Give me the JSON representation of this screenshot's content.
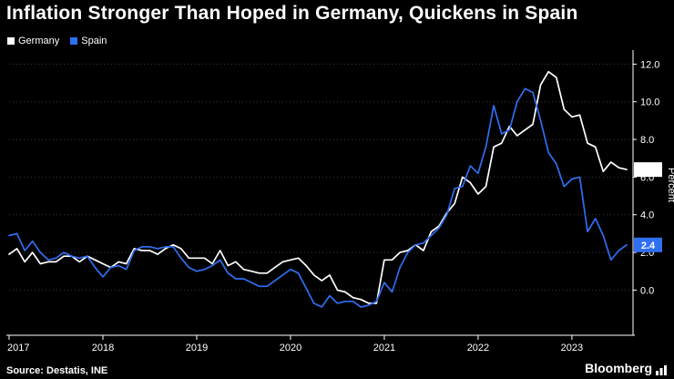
{
  "title": "Inflation Stronger Than Hoped in Germany, Quickens in Spain",
  "source": "Source: Destatis, INE",
  "brand": "Bloomberg",
  "colors": {
    "background": "#000000",
    "foreground": "#ffffff",
    "grid": "#3d3d3d",
    "germany": "#ffffff",
    "spain": "#2f6ff2"
  },
  "legend": [
    {
      "label": "Germany",
      "color": "#ffffff"
    },
    {
      "label": "Spain",
      "color": "#2f6ff2"
    }
  ],
  "chart_data": {
    "type": "line",
    "title": "Inflation Stronger Than Hoped in Germany, Quickens in Spain",
    "x_unit": "month",
    "x_start": "2017-01",
    "x_end": "2023-08",
    "frequency": "monthly",
    "ylabel": "Percent",
    "ylim": [
      -2.4,
      12.6
    ],
    "yticks": [
      0,
      2,
      4,
      6,
      8,
      10,
      12
    ],
    "grid": true,
    "legend_position": "top-left",
    "year_ticks": [
      {
        "label": "2017",
        "index": 0
      },
      {
        "label": "2018",
        "index": 12
      },
      {
        "label": "2019",
        "index": 24
      },
      {
        "label": "2020",
        "index": 36
      },
      {
        "label": "2021",
        "index": 48
      },
      {
        "label": "2022",
        "index": 60
      },
      {
        "label": "2023",
        "index": 72
      }
    ],
    "series": [
      {
        "name": "Germany",
        "color": "#ffffff",
        "values": [
          1.9,
          2.2,
          1.5,
          2.0,
          1.4,
          1.5,
          1.5,
          1.8,
          1.8,
          1.5,
          1.8,
          1.6,
          1.4,
          1.2,
          1.5,
          1.4,
          2.2,
          2.1,
          2.1,
          1.9,
          2.2,
          2.4,
          2.2,
          1.7,
          1.7,
          1.7,
          1.4,
          2.1,
          1.3,
          1.5,
          1.1,
          1.0,
          0.9,
          0.9,
          1.2,
          1.5,
          1.6,
          1.7,
          1.3,
          0.8,
          0.5,
          0.8,
          0.0,
          -0.1,
          -0.4,
          -0.5,
          -0.7,
          -0.7,
          1.6,
          1.6,
          2.0,
          2.1,
          2.4,
          2.1,
          3.1,
          3.4,
          4.1,
          4.6,
          6.0,
          5.7,
          5.1,
          5.5,
          7.6,
          7.8,
          8.7,
          8.2,
          8.5,
          8.8,
          10.9,
          11.6,
          11.3,
          9.6,
          9.2,
          9.3,
          7.8,
          7.6,
          6.3,
          6.8,
          6.5,
          6.4
        ]
      },
      {
        "name": "Spain",
        "color": "#2f6ff2",
        "values": [
          2.9,
          3.0,
          2.1,
          2.6,
          2.0,
          1.6,
          1.7,
          2.0,
          1.8,
          1.7,
          1.8,
          1.2,
          0.7,
          1.2,
          1.3,
          1.1,
          2.1,
          2.3,
          2.3,
          2.2,
          2.3,
          2.3,
          1.7,
          1.2,
          1.0,
          1.1,
          1.3,
          1.6,
          0.9,
          0.6,
          0.6,
          0.4,
          0.2,
          0.2,
          0.5,
          0.8,
          1.1,
          0.9,
          0.1,
          -0.7,
          -0.9,
          -0.3,
          -0.7,
          -0.6,
          -0.6,
          -0.9,
          -0.8,
          -0.6,
          0.4,
          -0.1,
          1.2,
          2.0,
          2.4,
          2.5,
          2.9,
          3.3,
          4.0,
          5.4,
          5.5,
          6.6,
          6.2,
          7.6,
          9.8,
          8.3,
          8.5,
          10.0,
          10.7,
          10.5,
          9.0,
          7.3,
          6.7,
          5.5,
          5.9,
          6.0,
          3.1,
          3.8,
          2.9,
          1.6,
          2.1,
          2.4
        ]
      }
    ],
    "end_labels": [
      {
        "series": "Germany",
        "label": "6.4",
        "value": 6.4,
        "bg": "#ffffff",
        "fg": "#000000"
      },
      {
        "series": "Spain",
        "label": "2.4",
        "value": 2.4,
        "bg": "#2f6ff2",
        "fg": "#ffffff"
      }
    ]
  }
}
